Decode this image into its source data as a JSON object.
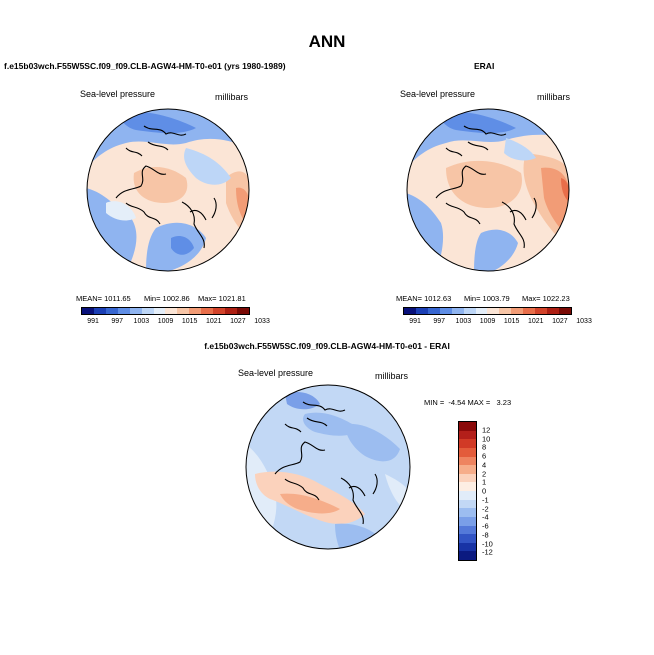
{
  "title": "ANN",
  "panels": [
    {
      "title": "f.e15b03wch.F55W5SC.f09_f09.CLB-AGW4-HM-T0-e01 (yrs 1980-1989)",
      "variable": "Sea-level pressure",
      "units": "millibars",
      "mean": "MEAN= 1011.65",
      "min": "Min= 1002.86",
      "max": "Max= 1021.81"
    },
    {
      "title": "ERAI",
      "variable": "Sea-level pressure",
      "units": "millibars",
      "mean": "MEAN= 1012.63",
      "min": "Min= 1003.79",
      "max": "Max= 1022.23"
    },
    {
      "title": "f.e15b03wch.F55W5SC.f09_f09.CLB-AGW4-HM-T0-e01 - ERAI",
      "variable": "Sea-level pressure",
      "units": "millibars",
      "minmax": "MIN =  -4.54 MAX =   3.23"
    }
  ],
  "colorbar_top": {
    "labels": [
      "991",
      "997",
      "1003",
      "1009",
      "1015",
      "1021",
      "1027",
      "1033"
    ],
    "colors": [
      "#08107a",
      "#1b3fb5",
      "#3766d1",
      "#5f8ee6",
      "#8fb4f0",
      "#bdd6f7",
      "#e4eef9",
      "#fbe5d6",
      "#f7c5a6",
      "#f29c76",
      "#e86e4a",
      "#d2432a",
      "#ad1f13",
      "#7a0a05"
    ]
  },
  "colorbar_diff": {
    "labels": [
      "12",
      "10",
      "8",
      "6",
      "4",
      "2",
      "1",
      "0",
      "-1",
      "-2",
      "-4",
      "-6",
      "-8",
      "-10",
      "-12"
    ],
    "colors": [
      "#8b0a0a",
      "#b31f1a",
      "#d13a26",
      "#e35c3b",
      "#ee8460",
      "#f6ad8a",
      "#fbd2bc",
      "#fdeee3",
      "#e1ecf9",
      "#c2d8f5",
      "#9cbdf0",
      "#7a9fe8",
      "#5479d9",
      "#3254c4",
      "#1833a5",
      "#0b1a80"
    ]
  },
  "map_data": {
    "projection": "north polar stereographic",
    "fields": [
      "model sea-level pressure",
      "ERAI sea-level pressure",
      "model minus ERAI"
    ]
  }
}
